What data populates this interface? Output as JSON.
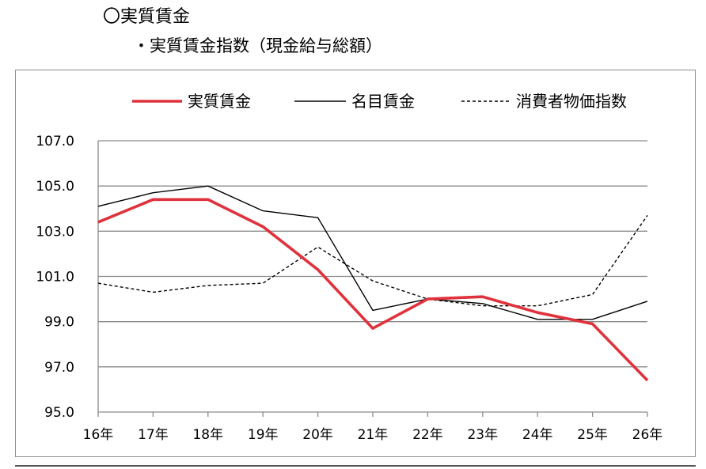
{
  "header": {
    "title": "〇実質賃金",
    "subtitle": "・実質賃金指数（現金給与総額）"
  },
  "chart_data": {
    "type": "line",
    "title": "",
    "xlabel": "",
    "ylabel": "",
    "categories": [
      "16年",
      "17年",
      "18年",
      "19年",
      "20年",
      "21年",
      "22年",
      "23年",
      "24年",
      "25年",
      "26年"
    ],
    "ylim": [
      95.0,
      107.0
    ],
    "yticks": [
      "95.0",
      "97.0",
      "99.0",
      "101.0",
      "103.0",
      "105.0",
      "107.0"
    ],
    "grid": true,
    "legend_position": "top",
    "series": [
      {
        "name": "実質賃金",
        "color": "#e0323c",
        "style": "solid-thick",
        "values": [
          103.4,
          104.4,
          104.4,
          103.2,
          101.3,
          98.7,
          100.0,
          100.1,
          99.4,
          98.9,
          96.4
        ]
      },
      {
        "name": "名目賃金",
        "color": "#000000",
        "style": "solid",
        "values": [
          104.1,
          104.7,
          105.0,
          103.9,
          103.6,
          99.5,
          100.0,
          99.8,
          99.1,
          99.1,
          99.9
        ]
      },
      {
        "name": "消費者物価指数",
        "color": "#000000",
        "style": "dashed",
        "values": [
          100.7,
          100.3,
          100.6,
          100.7,
          102.3,
          100.8,
          100.0,
          99.7,
          99.7,
          100.2,
          103.7
        ]
      }
    ]
  }
}
